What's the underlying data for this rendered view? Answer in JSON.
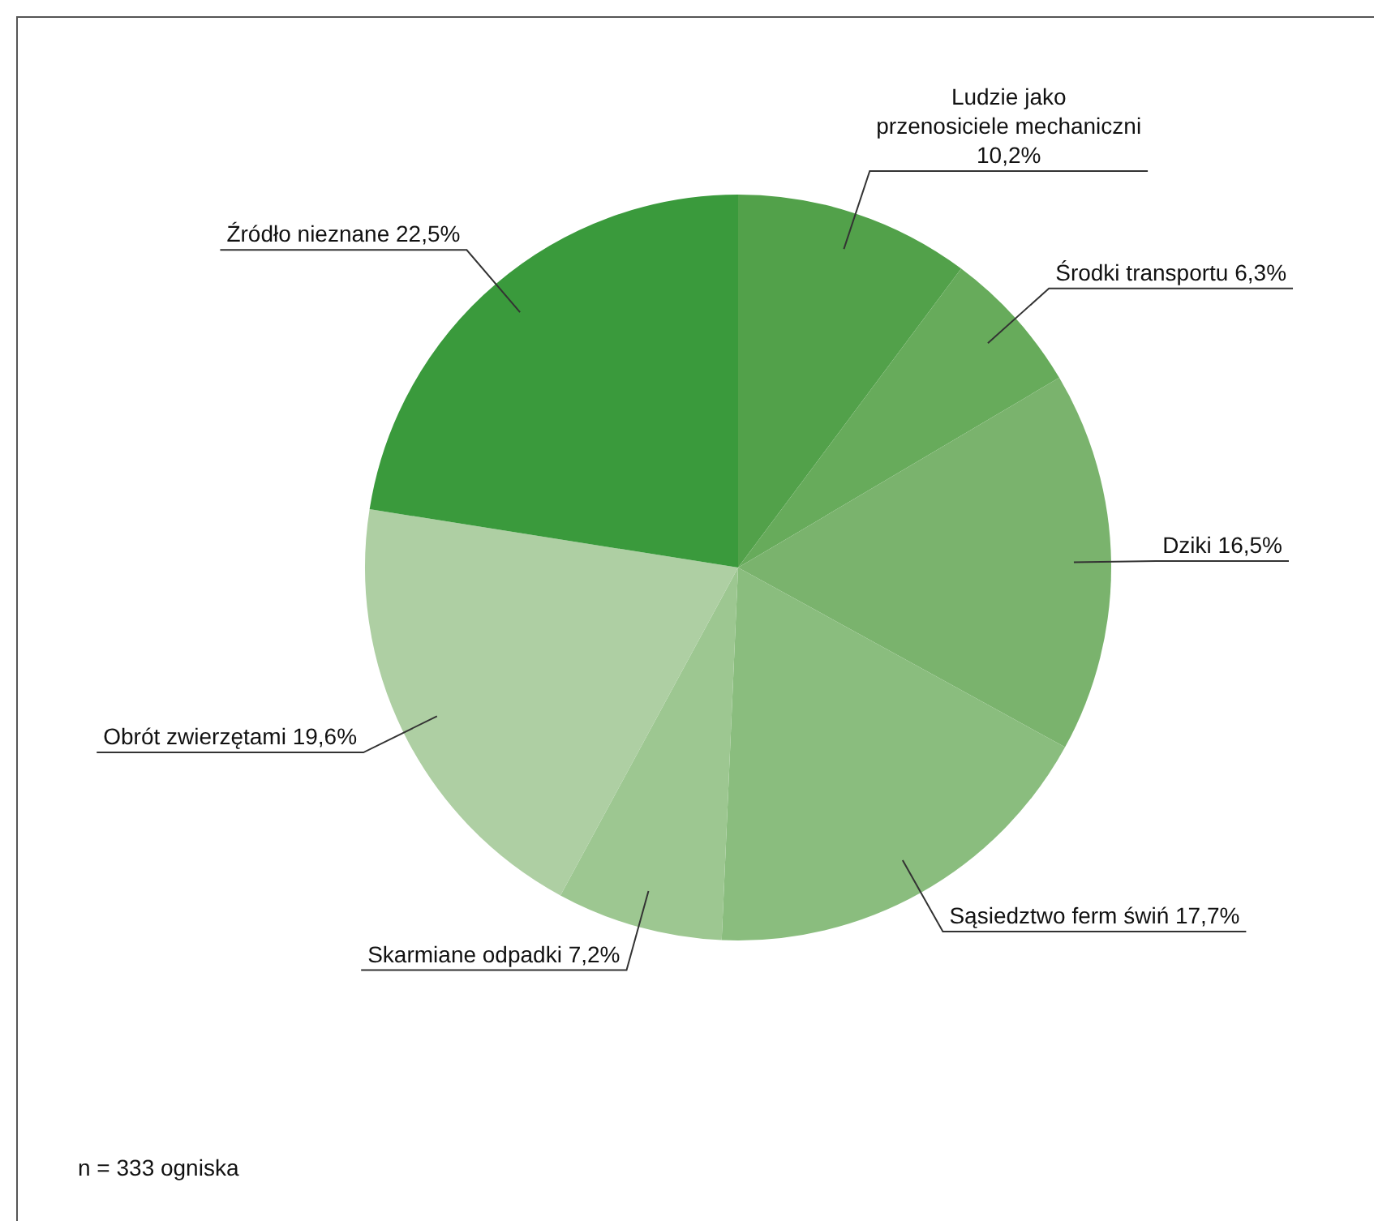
{
  "chart_data": {
    "type": "pie",
    "categories": [
      "Ludzie jako\nprzenosiciele mechaniczni",
      "Środki transportu",
      "Dziki",
      "Sąsiedztwo ferm świń",
      "Skarmiane odpadki",
      "Obrót zwierzętami",
      "Źródło nieznane"
    ],
    "values": [
      10.2,
      6.3,
      16.5,
      17.7,
      7.2,
      19.6,
      22.5
    ],
    "value_labels": [
      "10,2%",
      "6,3%",
      "16,5%",
      "17,7%",
      "7,2%",
      "19,6%",
      "22,5%"
    ],
    "colors": [
      "#52a14a",
      "#67ab5b",
      "#7ab36d",
      "#8abd7e",
      "#9dc791",
      "#aecfa3",
      "#3a9a3c"
    ],
    "legend": false,
    "annotations": [
      "n = 333 ogniska"
    ]
  }
}
